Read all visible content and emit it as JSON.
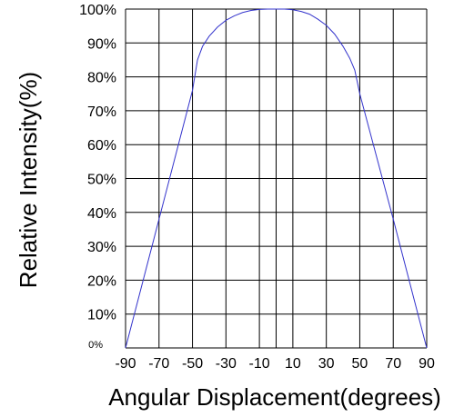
{
  "chart_data": {
    "type": "line",
    "title": "",
    "xlabel": "Angular Displacement(degrees)",
    "ylabel": "Relative Intensity(%)",
    "xlim": [
      -90,
      90
    ],
    "ylim": [
      0,
      100
    ],
    "grid": true,
    "x_tick_labels": [
      "-90",
      "-70",
      "-50",
      "-30",
      "-10",
      "10",
      "30",
      "50",
      "70",
      "90"
    ],
    "y_tick_labels": [
      "0%",
      "10%",
      "20%",
      "30%",
      "40%",
      "50%",
      "60%",
      "70%",
      "80%",
      "90%",
      "100%"
    ],
    "x_tick_values": [
      -90,
      -70,
      -50,
      -30,
      -10,
      10,
      30,
      50,
      70,
      90
    ],
    "y_tick_values": [
      0,
      10,
      20,
      30,
      40,
      50,
      60,
      70,
      80,
      90,
      100
    ],
    "series": [
      {
        "color": "#3333cc",
        "x": [
          -90,
          -70,
          -50,
          -47,
          -44,
          -40,
          -35,
          -30,
          -25,
          -20,
          -15,
          -10,
          -5,
          0,
          5,
          10,
          15,
          20,
          25,
          30,
          35,
          40,
          44,
          47,
          50,
          70,
          90
        ],
        "y": [
          0,
          38,
          76,
          85,
          89,
          92,
          94.7,
          96.7,
          98,
          99,
          99.6,
          99.9,
          100,
          100,
          100,
          99.8,
          99.3,
          98.5,
          97,
          95.2,
          92.6,
          89,
          85.5,
          82,
          75,
          38,
          0
        ]
      }
    ]
  }
}
